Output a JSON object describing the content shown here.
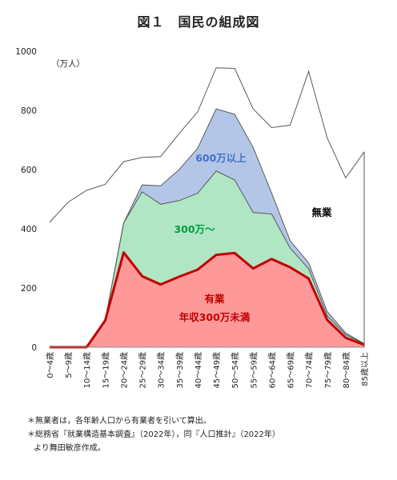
{
  "title": "図１　国民の組成図",
  "notes": [
    "＊無業者は，各年齢人口から有業者を引いて算出。",
    "＊総務省『就業構造基本調査』（2022年），同『人口推計』（2022年）",
    "より舞田敏彦作成。"
  ],
  "chart_data": {
    "type": "area",
    "title": "図１　国民の組成図",
    "ylabel": "（万人）",
    "xlabel": "",
    "ylim": [
      0,
      1000
    ],
    "yticks": [
      0,
      200,
      400,
      600,
      800,
      1000
    ],
    "grid": false,
    "categories": [
      "0～4歳",
      "5～9歳",
      "10～14歳",
      "15～19歳",
      "20～24歳",
      "25～29歳",
      "30～34歳",
      "35～39歳",
      "40～44歳",
      "45～49歳",
      "50～54歳",
      "55～59歳",
      "60～64歳",
      "65～69歳",
      "70～74歳",
      "75～79歳",
      "80～84歳",
      "85歳以上"
    ],
    "series": [
      {
        "name": "有業 年収300万未満",
        "color": "#ff9999",
        "stroke": "#c00000",
        "values": [
          0,
          0,
          0,
          90,
          320,
          240,
          212,
          238,
          262,
          312,
          318,
          266,
          298,
          270,
          232,
          92,
          32,
          8
        ]
      },
      {
        "name": "300万～",
        "color": "#b0e6c4",
        "stroke": "#595959",
        "values": [
          0,
          0,
          0,
          90,
          420,
          525,
          483,
          495,
          520,
          595,
          565,
          455,
          450,
          335,
          265,
          106,
          42,
          12
        ]
      },
      {
        "name": "600万以上",
        "color": "#b4c6e7",
        "stroke": "#595959",
        "values": [
          0,
          0,
          0,
          90,
          420,
          548,
          545,
          600,
          672,
          805,
          787,
          675,
          520,
          360,
          285,
          120,
          48,
          12
        ]
      },
      {
        "name": "無業",
        "color": "none",
        "stroke": "#595959",
        "values": [
          422,
          490,
          530,
          550,
          627,
          641,
          644,
          722,
          795,
          944,
          942,
          805,
          742,
          750,
          932,
          707,
          572,
          660
        ]
      }
    ],
    "labels": {
      "yugyo": "有業",
      "low": "年収300万未満",
      "mid": "300万～",
      "high": "600万以上",
      "mugyo": "無業"
    },
    "label_colors": {
      "low": "#c00000",
      "mid": "#00a040",
      "high": "#4472c4",
      "mugyo": "#000000"
    }
  }
}
